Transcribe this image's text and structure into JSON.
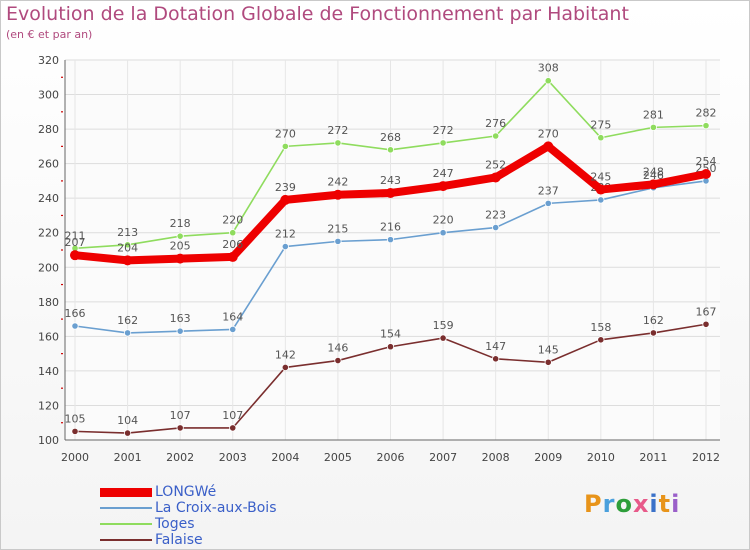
{
  "header": {
    "title": "Evolution de la Dotation Globale de Fonctionnement par Habitant",
    "subtitle": "(en € et par an)"
  },
  "logo": {
    "text": "Proxiti"
  },
  "chart_data": {
    "type": "line",
    "title": "Evolution de la Dotation Globale de Fonctionnement par Habitant",
    "subtitle": "(en € et par an)",
    "xlabel": "",
    "ylabel": "",
    "x": [
      "2000",
      "2001",
      "2002",
      "2003",
      "2004",
      "2005",
      "2006",
      "2007",
      "2008",
      "2009",
      "2010",
      "2011",
      "2012"
    ],
    "ylim": [
      100,
      320
    ],
    "yticks": [
      100,
      120,
      140,
      160,
      180,
      200,
      220,
      240,
      260,
      280,
      300,
      320
    ],
    "grid": true,
    "legend": "bottom-left",
    "series": [
      {
        "name": "LONGWé",
        "color": "#ee0000",
        "values": [
          207,
          204,
          205,
          206,
          239,
          242,
          243,
          247,
          252,
          270,
          245,
          248,
          254
        ]
      },
      {
        "name": "La Croix-aux-Bois",
        "color": "#6a9fd0",
        "values": [
          166,
          162,
          163,
          164,
          212,
          215,
          216,
          220,
          223,
          237,
          239,
          246,
          250
        ]
      },
      {
        "name": "Toges",
        "color": "#8fdc5e",
        "values": [
          211,
          213,
          218,
          220,
          270,
          272,
          268,
          272,
          276,
          308,
          275,
          281,
          282
        ]
      },
      {
        "name": "Falaise",
        "color": "#7a2e2e",
        "values": [
          105,
          104,
          107,
          107,
          142,
          146,
          154,
          159,
          147,
          145,
          158,
          162,
          167
        ]
      }
    ]
  }
}
